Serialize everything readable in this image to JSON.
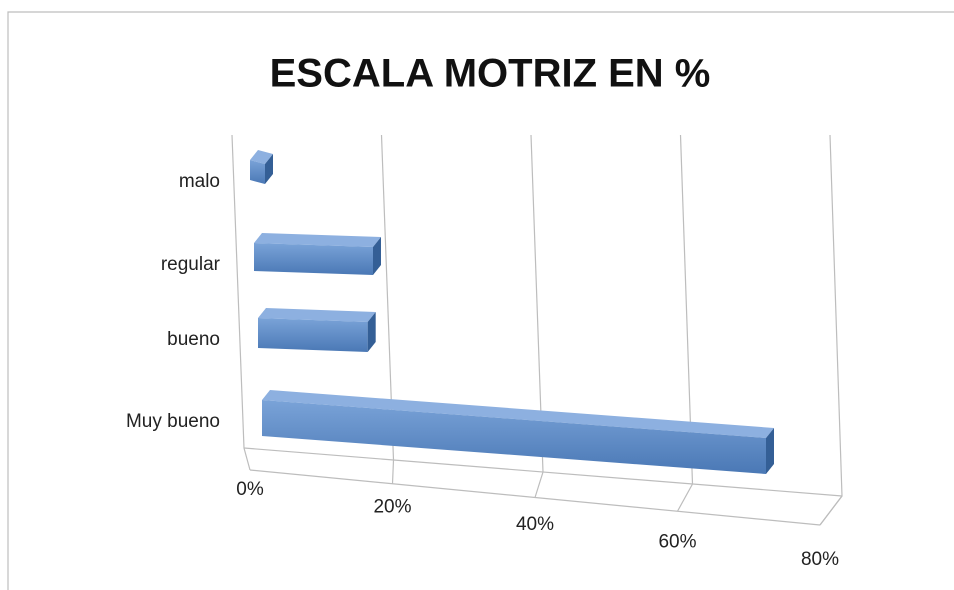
{
  "chart_data": {
    "type": "bar3d",
    "title": "ESCALA MOTRIZ EN %",
    "categories": [
      "malo",
      "regular",
      "bueno",
      "Muy bueno"
    ],
    "values": [
      2,
      16,
      15,
      72
    ],
    "color": "#4f81bd",
    "xlim": [
      0,
      80
    ],
    "xticks": [
      {
        "value": 0,
        "label": "0%"
      },
      {
        "value": 20,
        "label": "20%"
      },
      {
        "value": 40,
        "label": "40%"
      },
      {
        "value": 60,
        "label": "60%"
      },
      {
        "value": 80,
        "label": "80%"
      }
    ],
    "grid": true
  }
}
